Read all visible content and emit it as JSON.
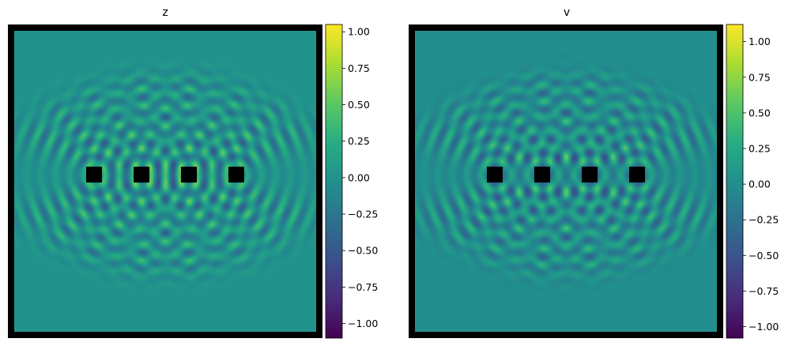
{
  "chart_data": [
    {
      "type": "heatmap",
      "title": "z",
      "colormap": "viridis",
      "clim": [
        -1.1,
        1.05
      ],
      "colorbar_ticks": [
        1.0,
        0.75,
        0.5,
        0.25,
        0.0,
        -0.25,
        -0.5,
        -0.75,
        -1.0
      ],
      "colorbar_tick_labels": [
        "1.00",
        "0.75",
        "0.50",
        "0.25",
        "0.00",
        "−0.25",
        "−0.50",
        "−0.75",
        "−1.00"
      ],
      "obstacles": 4,
      "border_color": "#000000",
      "obstacle_color": "#000000",
      "field_phase": 0
    },
    {
      "type": "heatmap",
      "title": "v",
      "colormap": "viridis",
      "clim": [
        -1.08,
        1.12
      ],
      "colorbar_ticks": [
        1.0,
        0.75,
        0.5,
        0.25,
        0.0,
        -0.25,
        -0.5,
        -0.75,
        -1.0
      ],
      "colorbar_tick_labels": [
        "1.00",
        "0.75",
        "0.50",
        "0.25",
        "0.00",
        "−0.25",
        "−0.50",
        "−0.75",
        "−1.00"
      ],
      "obstacles": 4,
      "border_color": "#000000",
      "obstacle_color": "#000000",
      "field_phase": 1.5708
    }
  ]
}
